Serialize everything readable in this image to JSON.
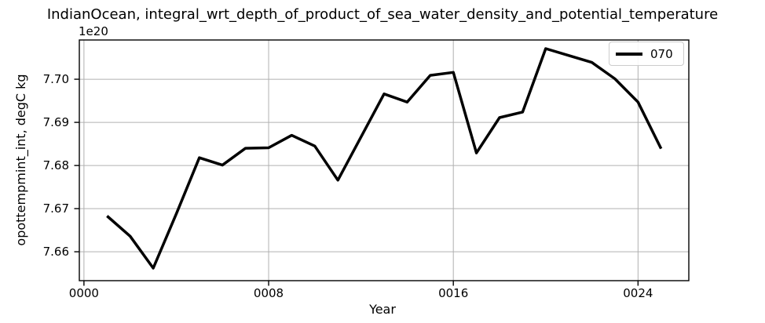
{
  "chart_data": {
    "type": "line",
    "title": "IndianOcean, integral_wrt_depth_of_product_of_sea_water_density_and_potential_temperature",
    "xlabel": "Year",
    "ylabel": "opottempmint_int, degC kg",
    "y_offset_factor": "1e20",
    "x": [
      1,
      2,
      3,
      4,
      5,
      6,
      7,
      8,
      9,
      10,
      11,
      12,
      13,
      14,
      15,
      16,
      17,
      18,
      19,
      20,
      21,
      22,
      23,
      24,
      25
    ],
    "series": [
      {
        "name": "070",
        "color": "#000000",
        "values_in_1e20": [
          7.6683,
          7.6636,
          7.6562,
          7.6688,
          7.6818,
          7.6801,
          7.684,
          7.6841,
          7.687,
          7.6845,
          7.6766,
          7.6866,
          7.6966,
          7.6947,
          7.7009,
          7.7016,
          7.6829,
          7.6911,
          7.6924,
          7.7071,
          7.7055,
          7.7039,
          7.7001,
          7.6947,
          7.6839
        ]
      }
    ],
    "xlim": [
      -0.2,
      26.2
    ],
    "ylim_in_1e20": [
      7.6533,
      7.7091
    ],
    "xticks": {
      "values": [
        0,
        8,
        16,
        24
      ],
      "labels": [
        "0000",
        "0008",
        "0016",
        "0024"
      ]
    },
    "yticks": {
      "values": [
        7.66,
        7.67,
        7.68,
        7.69,
        7.7
      ],
      "labels": [
        "7.66",
        "7.67",
        "7.68",
        "7.69",
        "7.70"
      ]
    },
    "grid": true,
    "grid_color": "#b0b0b0",
    "line_width": 3.5,
    "legend": {
      "position": "upper right",
      "entries": [
        "070"
      ]
    }
  }
}
